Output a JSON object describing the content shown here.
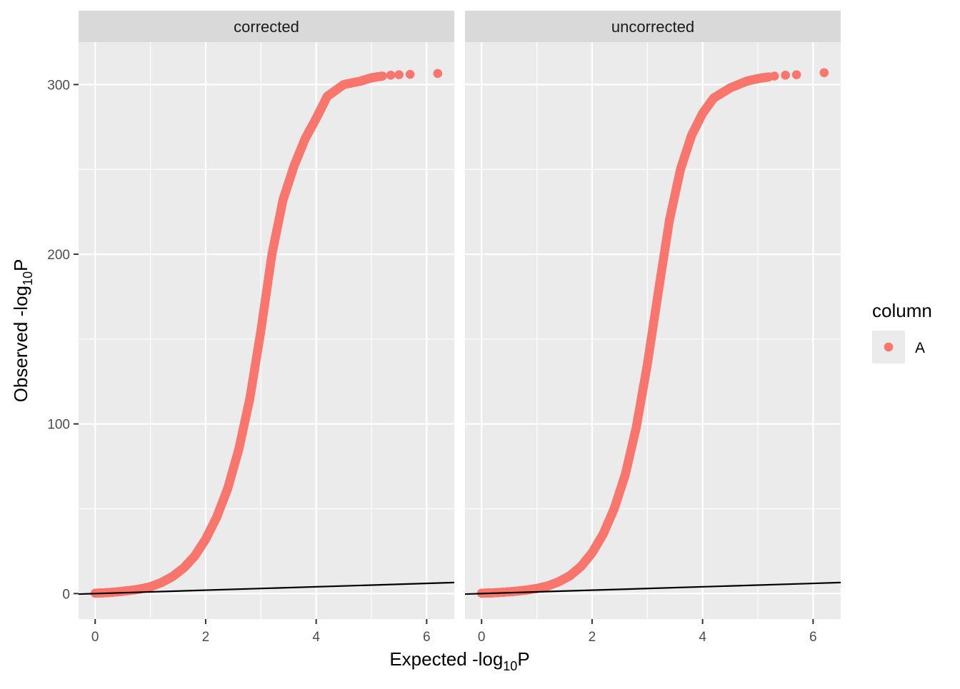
{
  "chart_data": {
    "type": "scatter",
    "xlabel_main": "Expected -log",
    "xlabel_sub": "10",
    "xlabel_end": "P",
    "ylabel_main": "Observed -log",
    "ylabel_sub": "10",
    "ylabel_end": "P",
    "xlim": [
      -0.3,
      6.5
    ],
    "ylim": [
      -15,
      325
    ],
    "x_ticks": [
      0,
      2,
      4,
      6
    ],
    "y_ticks": [
      0,
      100,
      200,
      300
    ],
    "grid": true,
    "legend": {
      "title": "column",
      "position": "right",
      "entries": [
        {
          "label": "A",
          "color": "#F8766D"
        }
      ]
    },
    "reference_line": {
      "x0": -0.3,
      "y0": -0.3,
      "x1": 6.5,
      "y1": 6.5,
      "color": "#000000"
    },
    "point_color": "#F8766D",
    "panels": [
      {
        "title": "corrected",
        "series": [
          {
            "name": "A",
            "points": [
              [
                0.0,
                0.2
              ],
              [
                0.2,
                0.5
              ],
              [
                0.4,
                1.0
              ],
              [
                0.6,
                1.7
              ],
              [
                0.8,
                2.6
              ],
              [
                1.0,
                4.0
              ],
              [
                1.2,
                6.5
              ],
              [
                1.4,
                10.0
              ],
              [
                1.6,
                15.0
              ],
              [
                1.8,
                22.0
              ],
              [
                2.0,
                32.0
              ],
              [
                2.2,
                45.0
              ],
              [
                2.4,
                62.0
              ],
              [
                2.6,
                85.0
              ],
              [
                2.8,
                115.0
              ],
              [
                3.0,
                155.0
              ],
              [
                3.2,
                200.0
              ],
              [
                3.4,
                232.0
              ],
              [
                3.6,
                252.0
              ],
              [
                3.8,
                268.0
              ],
              [
                4.0,
                280.0
              ],
              [
                4.2,
                293.0
              ],
              [
                4.5,
                300.0
              ],
              [
                4.8,
                302.0
              ],
              [
                5.0,
                304.0
              ],
              [
                5.2,
                305.0
              ],
              [
                5.35,
                305.5
              ],
              [
                5.5,
                305.8
              ],
              [
                5.7,
                306.0
              ],
              [
                6.2,
                306.5
              ]
            ]
          }
        ]
      },
      {
        "title": "uncorrected",
        "series": [
          {
            "name": "A",
            "points": [
              [
                0.0,
                0.2
              ],
              [
                0.2,
                0.4
              ],
              [
                0.4,
                0.8
              ],
              [
                0.6,
                1.3
              ],
              [
                0.8,
                2.0
              ],
              [
                1.0,
                3.0
              ],
              [
                1.2,
                4.5
              ],
              [
                1.4,
                7.0
              ],
              [
                1.6,
                10.5
              ],
              [
                1.8,
                16.0
              ],
              [
                2.0,
                24.0
              ],
              [
                2.2,
                35.0
              ],
              [
                2.4,
                50.0
              ],
              [
                2.6,
                70.0
              ],
              [
                2.8,
                98.0
              ],
              [
                3.0,
                135.0
              ],
              [
                3.2,
                178.0
              ],
              [
                3.4,
                220.0
              ],
              [
                3.6,
                250.0
              ],
              [
                3.8,
                270.0
              ],
              [
                4.0,
                283.0
              ],
              [
                4.2,
                292.0
              ],
              [
                4.5,
                298.0
              ],
              [
                4.8,
                302.0
              ],
              [
                5.0,
                303.5
              ],
              [
                5.2,
                304.5
              ],
              [
                5.3,
                305.0
              ],
              [
                5.5,
                305.5
              ],
              [
                5.7,
                305.8
              ],
              [
                6.2,
                307.0
              ]
            ]
          }
        ]
      }
    ]
  }
}
